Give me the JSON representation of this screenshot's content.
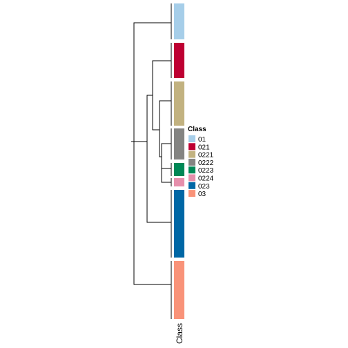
{
  "annotation_label": "Class",
  "legend": {
    "title": "Class",
    "items": [
      {
        "label": "01",
        "color": "#A6CEE9"
      },
      {
        "label": "021",
        "color": "#BE0032"
      },
      {
        "label": "0221",
        "color": "#C2B280"
      },
      {
        "label": "0222",
        "color": "#848482"
      },
      {
        "label": "0223",
        "color": "#008856"
      },
      {
        "label": "0224",
        "color": "#E68FAC"
      },
      {
        "label": "023",
        "color": "#0067A5"
      },
      {
        "label": "03",
        "color": "#F99379"
      }
    ]
  },
  "groups_top_to_bottom": [
    "01",
    "021",
    "0221",
    "0222",
    "0223",
    "0224",
    "023",
    "03"
  ],
  "line_color": "#000000"
}
